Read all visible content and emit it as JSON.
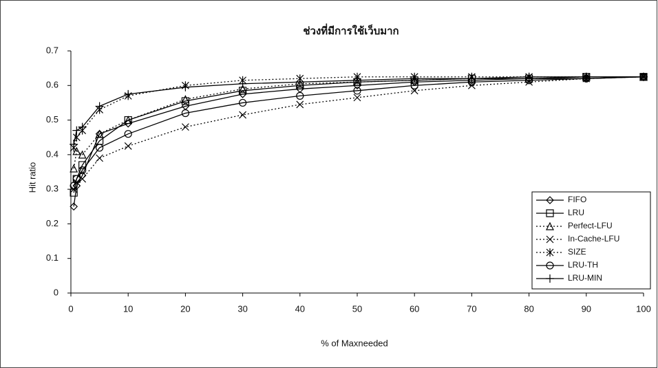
{
  "chart_data": {
    "type": "line",
    "title": "ช่วงที่มีการใช้เว็บมาก",
    "x_label": "% of Maxneeded",
    "y_label": "Hit ratio",
    "x": [
      0.5,
      1,
      2,
      5,
      10,
      20,
      30,
      40,
      50,
      60,
      70,
      80,
      90,
      100
    ],
    "xlim": [
      0,
      100
    ],
    "xticks": [
      0,
      10,
      20,
      30,
      40,
      50,
      60,
      70,
      80,
      90,
      100
    ],
    "ylim": [
      0,
      0.7
    ],
    "yticks": [
      0,
      0.1,
      0.2,
      0.3,
      0.4,
      0.5,
      0.6,
      0.7
    ],
    "legend": "lower right",
    "series": [
      {
        "name": "FIFO",
        "color": "#000000",
        "marker": "diamond",
        "dashed": false,
        "values": [
          0.25,
          0.31,
          0.34,
          0.46,
          0.49,
          0.54,
          0.575,
          0.59,
          0.6,
          0.61,
          0.615,
          0.62,
          0.62,
          0.625
        ]
      },
      {
        "name": "LRU",
        "color": "#000000",
        "marker": "square",
        "dashed": false,
        "values": [
          0.29,
          0.33,
          0.37,
          0.44,
          0.5,
          0.555,
          0.585,
          0.6,
          0.61,
          0.615,
          0.62,
          0.62,
          0.625,
          0.625
        ]
      },
      {
        "name": "Perfect-LFU",
        "color": "#000000",
        "marker": "triangle",
        "dashed": true,
        "values": [
          0.36,
          0.41,
          0.4,
          0.46,
          0.5,
          0.56,
          0.59,
          0.605,
          0.61,
          0.615,
          0.62,
          0.62,
          0.625,
          0.625
        ]
      },
      {
        "name": "In-Cache-LFU",
        "color": "#000000",
        "marker": "x",
        "dashed": true,
        "values": [
          0.3,
          0.32,
          0.33,
          0.39,
          0.425,
          0.48,
          0.515,
          0.545,
          0.565,
          0.585,
          0.6,
          0.61,
          0.62,
          0.625
        ]
      },
      {
        "name": "SIZE",
        "color": "#000000",
        "marker": "star",
        "dashed": true,
        "values": [
          0.42,
          0.45,
          0.47,
          0.53,
          0.57,
          0.6,
          0.615,
          0.62,
          0.625,
          0.625,
          0.625,
          0.625,
          0.625,
          0.625
        ]
      },
      {
        "name": "LRU-TH",
        "color": "#000000",
        "marker": "circle",
        "dashed": false,
        "values": [
          0.31,
          0.33,
          0.355,
          0.42,
          0.46,
          0.52,
          0.55,
          0.57,
          0.585,
          0.6,
          0.61,
          0.615,
          0.62,
          0.625
        ]
      },
      {
        "name": "LRU-MIN",
        "color": "#000000",
        "marker": "plus",
        "dashed": false,
        "values": [
          0.43,
          0.47,
          0.48,
          0.54,
          0.575,
          0.595,
          0.605,
          0.61,
          0.615,
          0.62,
          0.62,
          0.625,
          0.625,
          0.625
        ]
      }
    ]
  }
}
